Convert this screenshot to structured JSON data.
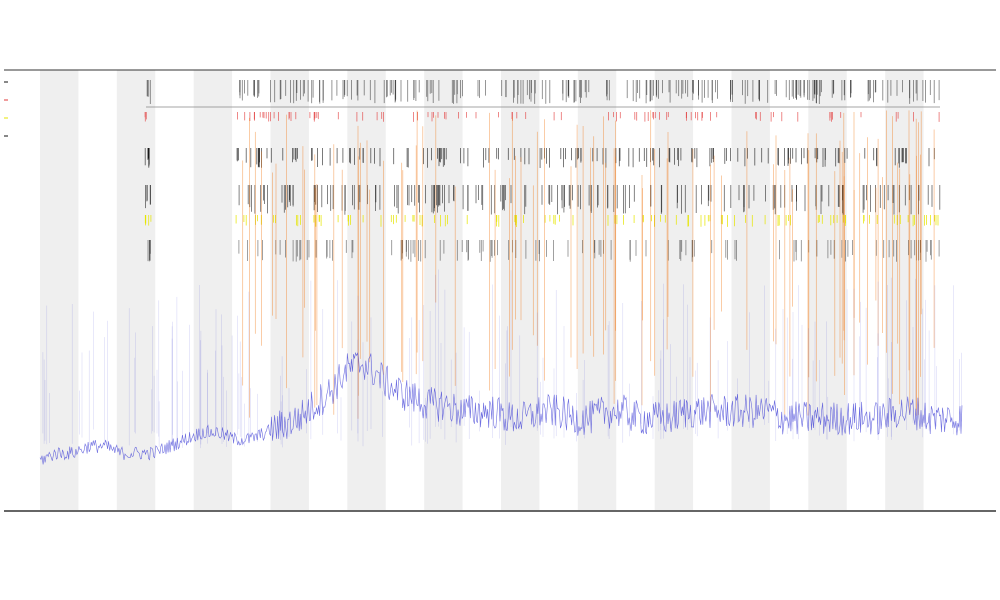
{
  "chart_data": {
    "type": "line",
    "title": "",
    "subtitle_lines": [
      "",
      ""
    ],
    "xlabel": "",
    "ylabel": "",
    "legend_placement": "top-left",
    "legend_entries": [
      "",
      "",
      "",
      ""
    ],
    "band_count": 24,
    "colors": {
      "band": "#efefef",
      "axis": "#333333",
      "series_blue": "#3d3dd6",
      "marks_red": "#e23a3a",
      "marks_black": "#111111",
      "marks_yellow": "#e6e600",
      "marks_orange": "#f07a1a"
    },
    "series": [
      {
        "color": "#3d3dd6",
        "y_profile": [
          5,
          6,
          6,
          7,
          7,
          6,
          6,
          6,
          7,
          8,
          9,
          9,
          8,
          8,
          9,
          10,
          11,
          13,
          15,
          18,
          19,
          17,
          15,
          14,
          13,
          13,
          12,
          12,
          12,
          11,
          11,
          12,
          12,
          11,
          11,
          12,
          12,
          11,
          11,
          11,
          12,
          12,
          12,
          12,
          12,
          12,
          11,
          11,
          11,
          11,
          11,
          11,
          11,
          12,
          12,
          11,
          11,
          11
        ]
      }
    ]
  }
}
